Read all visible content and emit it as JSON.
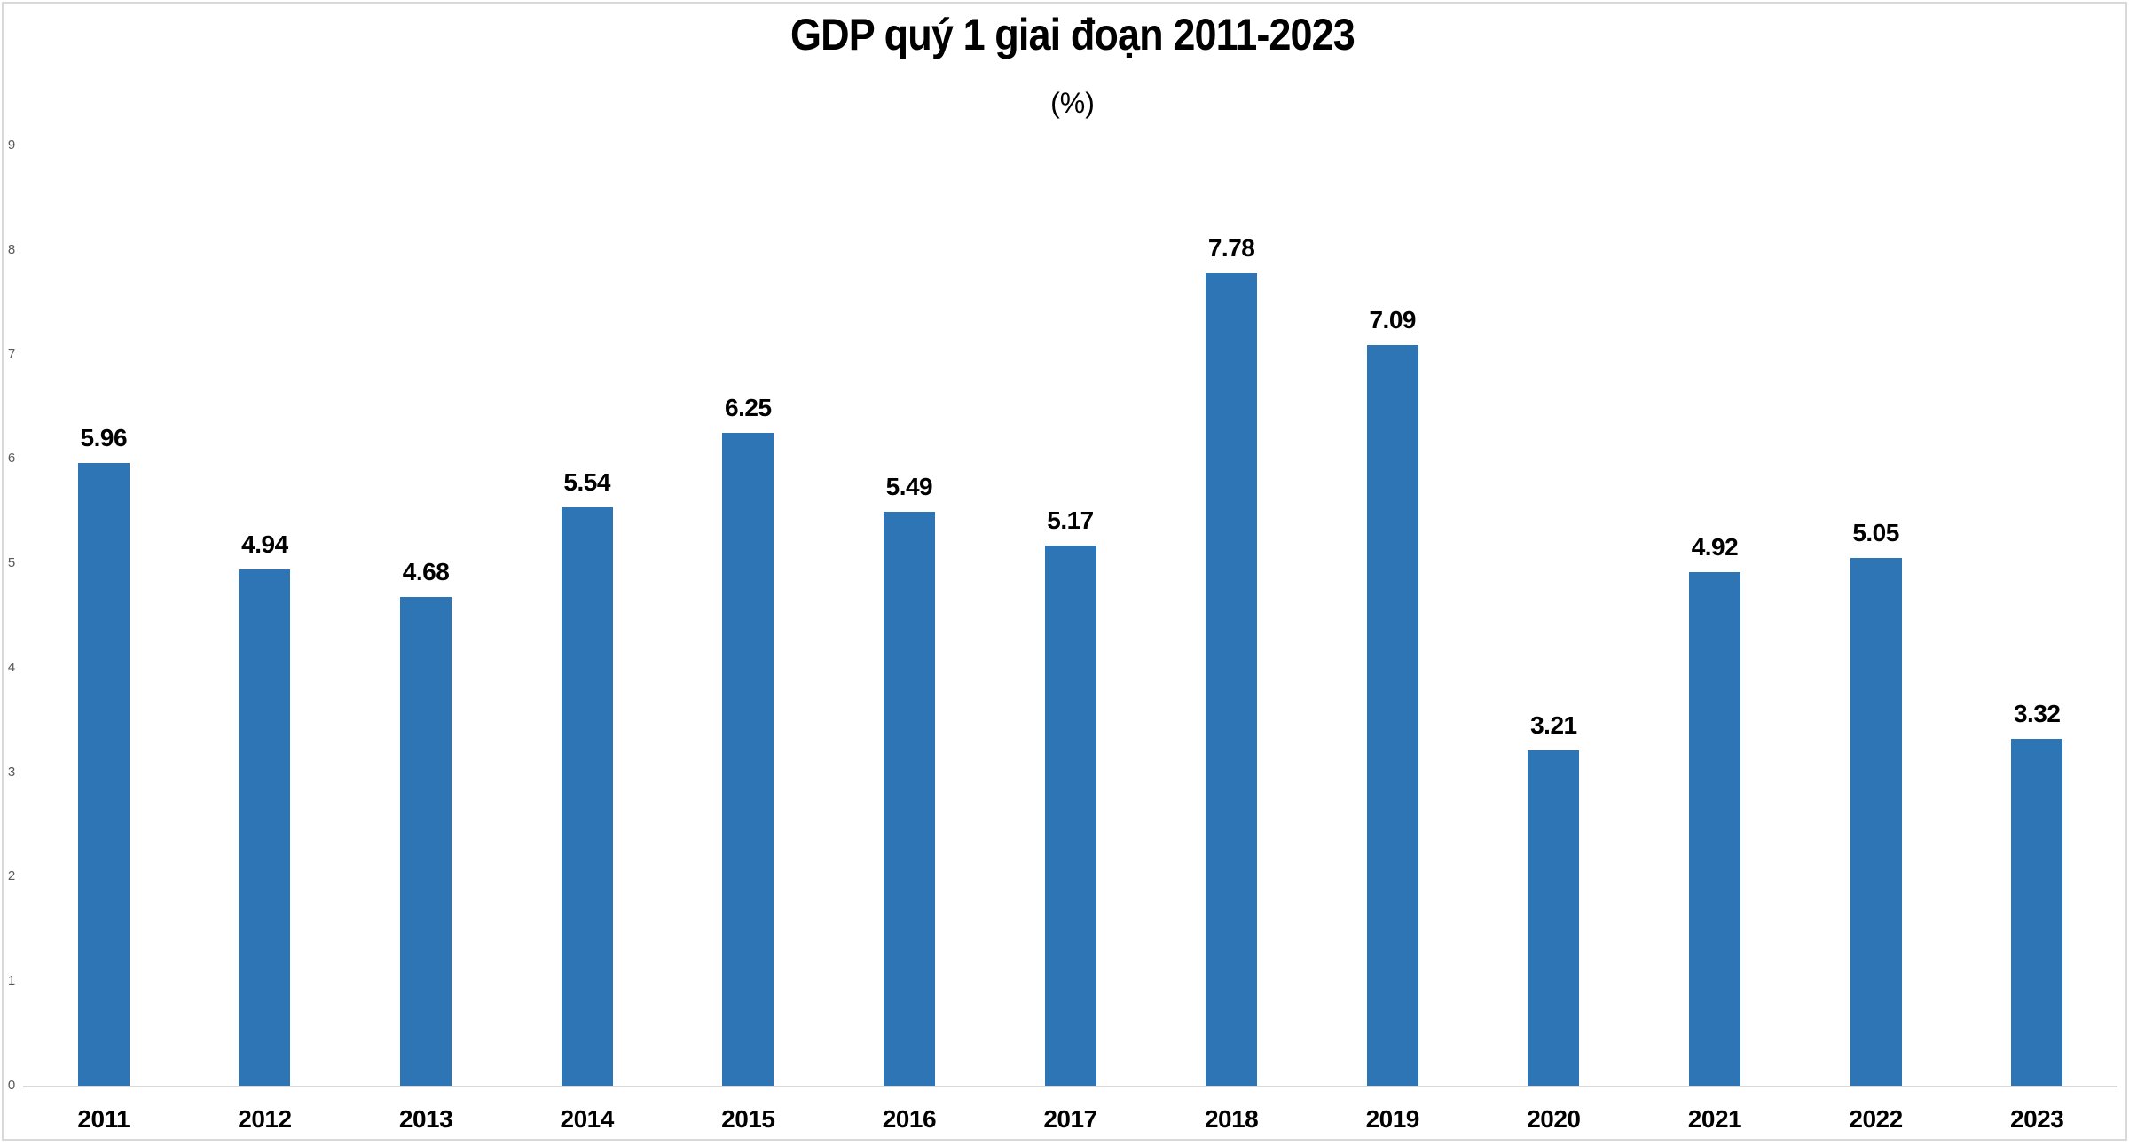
{
  "chart": {
    "background": "#FFFFFF",
    "frame_color": "#D9D9D9",
    "axis_line_color": "#D9D9D9",
    "tick_label_color": "#595959",
    "title_color": "#000000",
    "data_label_color": "#000000"
  },
  "chart_data": {
    "type": "bar",
    "title": "GDP quý 1 giai đoạn 2011-2023",
    "subtitle": "(%)",
    "categories": [
      "2011",
      "2012",
      "2013",
      "2014",
      "2015",
      "2016",
      "2017",
      "2018",
      "2019",
      "2020",
      "2021",
      "2022",
      "2023"
    ],
    "values": [
      5.96,
      4.94,
      4.68,
      5.54,
      6.25,
      5.49,
      5.17,
      7.78,
      7.09,
      3.21,
      4.92,
      5.05,
      3.32
    ],
    "data_labels": [
      "5.96",
      "4.94",
      "4.68",
      "5.54",
      "6.25",
      "5.49",
      "5.17",
      "7.78",
      "7.09",
      "3.21",
      "4.92",
      "5.05",
      "3.32"
    ],
    "xlabel": "",
    "ylabel": "",
    "ylim": [
      0,
      9
    ],
    "yticks": [
      0,
      1,
      2,
      3,
      4,
      5,
      6,
      7,
      8,
      9
    ],
    "bar_color": "#2E75B6",
    "grid": false,
    "legend": false,
    "data_labels_position": "above-bar",
    "tick_label_side": "left"
  }
}
